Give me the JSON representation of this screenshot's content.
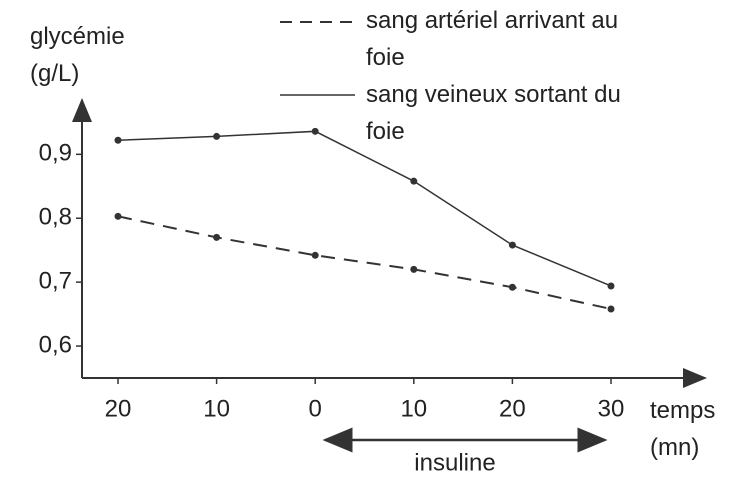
{
  "chart_data": {
    "type": "line",
    "y_label": "glycémie (g/L)",
    "x_label": "temps (mn)",
    "categories": [
      "20",
      "10",
      "0",
      "10",
      "20",
      "30"
    ],
    "series": [
      {
        "name": "sang artériel arrivant au foie",
        "color": "#333333",
        "dash": true,
        "values": [
          0.803,
          0.77,
          0.742,
          0.72,
          0.692,
          0.658
        ]
      },
      {
        "name": "sang veineux sortant du foie",
        "color": "#333333",
        "dash": false,
        "values": [
          0.922,
          0.928,
          0.936,
          0.858,
          0.758,
          0.694
        ]
      }
    ],
    "ylim": [
      0.55,
      0.985
    ],
    "yticks": [
      {
        "value": 0.6,
        "label": "0,6"
      },
      {
        "value": 0.7,
        "label": "0,7"
      },
      {
        "value": 0.8,
        "label": "0,8"
      },
      {
        "value": 0.9,
        "label": "0,9"
      }
    ],
    "annotation": "insuline",
    "grid": false
  }
}
